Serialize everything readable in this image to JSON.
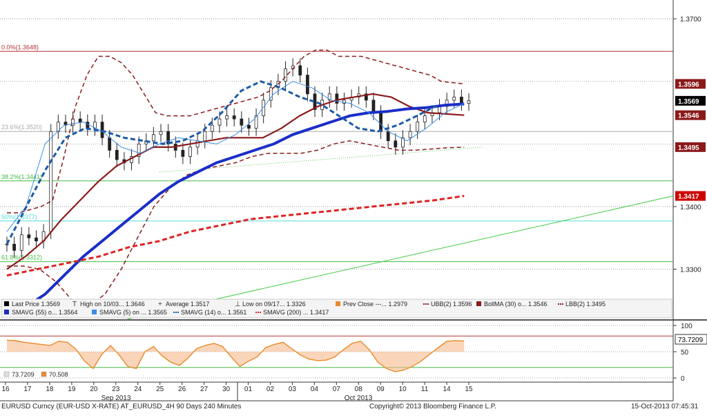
{
  "chart_data": {
    "type": "line",
    "title": "EURUSD Curncy (EUR-USD X-RATE) AT_EURUSD_4H 90 Days 240 Minutes",
    "copyright": "Copyright© 2013 Bloomberg Finance L.P.",
    "timestamp": "15-Oct-2013 07:45:31",
    "x_ticks": [
      "16",
      "17",
      "18",
      "19",
      "20",
      "23",
      "24",
      "25",
      "26",
      "27",
      "30",
      "01",
      "02",
      "03",
      "04",
      "07",
      "08",
      "09",
      "10",
      "11",
      "14",
      "15"
    ],
    "month_labels": [
      "Sep 2013",
      "Oct 2013"
    ],
    "price_axis": {
      "ticks": [
        "1.3700",
        "1.3400",
        "1.3300"
      ],
      "ylim": [
        1.322,
        1.373
      ]
    },
    "fibonacci_levels": [
      {
        "label": "0.0%(1.3648)",
        "value": 1.3648,
        "color": "#b03030"
      },
      {
        "label": "23.6%(1.3520)",
        "value": 1.352,
        "color": "#aaaaaa"
      },
      {
        "label": "38.2%(1.3441)",
        "value": 1.3441,
        "color": "#44bb44"
      },
      {
        "label": "50%(1.3377)",
        "value": 1.3377,
        "color": "#55dddd"
      },
      {
        "label": "61.8%(1.3312)",
        "value": 1.3312,
        "color": "#44bb44"
      }
    ],
    "price_tags": [
      {
        "label": "1.3596",
        "value": 1.3596,
        "color": "#8b1a1a"
      },
      {
        "label": "1.3569",
        "value": 1.3569,
        "color": "#000000"
      },
      {
        "label": "1.3546",
        "value": 1.3546,
        "color": "#8b1a1a"
      },
      {
        "label": "1.3495",
        "value": 1.3495,
        "color": "#8b1a1a"
      },
      {
        "label": "1.3417",
        "value": 1.3417,
        "color": "#cc0000"
      }
    ],
    "legend": [
      [
        {
          "text": "Last Price",
          "value": "1.3569",
          "color": "#000000",
          "kind": "box"
        },
        {
          "text": "High on 10/03...",
          "value": "1.3646",
          "color": "#333333",
          "kind": "high"
        },
        {
          "text": "Average",
          "value": "1.3517",
          "color": "#333333",
          "kind": "plus"
        },
        {
          "text": "Low on 09/17...",
          "value": "1.3326",
          "color": "#333333",
          "kind": "low"
        },
        {
          "text": "Prev Close ---...",
          "value": "1.2979",
          "color": "#e88a2a",
          "kind": "box"
        },
        {
          "text": "UBB(2)",
          "value": "1.3596",
          "color": "#8b1a1a",
          "kind": "dash"
        },
        {
          "text": "BollMA (30) o...",
          "value": "1.3546",
          "color": "#8b1a1a",
          "kind": "box"
        },
        {
          "text": "LBB(2)",
          "value": "1.3495",
          "color": "#8b1a1a",
          "kind": "dash"
        }
      ],
      [
        {
          "text": "SMAVG (55) o...",
          "value": "1.3564",
          "color": "#1a2ec8",
          "kind": "box"
        },
        {
          "text": "SMAVG (5) on ...",
          "value": "1.3565",
          "color": "#3a8ee8",
          "kind": "box"
        },
        {
          "text": "SMAVG (14) o...",
          "value": "1.3561",
          "color": "#1a5aa8",
          "kind": "dash"
        },
        {
          "text": "SMAVG (200) ...",
          "value": "1.3417",
          "color": "#dd2222",
          "kind": "dash"
        }
      ]
    ],
    "series": [
      {
        "name": "Last Price",
        "style": "candlestick",
        "color": "#222222",
        "close": [
          1.334,
          1.333,
          1.3355,
          1.335,
          1.3345,
          1.336,
          1.352,
          1.3535,
          1.353,
          1.354,
          1.3535,
          1.3525,
          1.3535,
          1.351,
          1.349,
          1.3475,
          1.347,
          1.348,
          1.35,
          1.3505,
          1.3515,
          1.352,
          1.35,
          1.349,
          1.348,
          1.3495,
          1.3505,
          1.352,
          1.353,
          1.354,
          1.3545,
          1.354,
          1.353,
          1.3525,
          1.3545,
          1.357,
          1.359,
          1.36,
          1.362,
          1.3625,
          1.361,
          1.358,
          1.3555,
          1.357,
          1.358,
          1.3565,
          1.357,
          1.3575,
          1.358,
          1.357,
          1.355,
          1.352,
          1.3505,
          1.3495,
          1.351,
          1.352,
          1.3535,
          1.3545,
          1.355,
          1.356,
          1.357,
          1.3575,
          1.3565,
          1.3569
        ]
      },
      {
        "name": "UBB(2)",
        "style": "dashed",
        "color": "#8b1a1a",
        "values": [
          1.339,
          1.339,
          1.3395,
          1.34,
          1.341,
          1.348,
          1.356,
          1.361,
          1.364,
          1.364,
          1.363,
          1.361,
          1.358,
          1.355,
          1.3545,
          1.3545,
          1.3545,
          1.355,
          1.3555,
          1.356,
          1.3565,
          1.357,
          1.3575,
          1.3585,
          1.36,
          1.362,
          1.364,
          1.365,
          1.365,
          1.364,
          1.364,
          1.364,
          1.3635,
          1.363,
          1.3625,
          1.362,
          1.3615,
          1.361,
          1.36,
          1.3598,
          1.3596
        ]
      },
      {
        "name": "LBB(2)",
        "style": "dashed",
        "color": "#8b1a1a",
        "values": [
          1.3305,
          1.3305,
          1.33,
          1.328,
          1.325,
          1.324,
          1.326,
          1.33,
          1.335,
          1.34,
          1.343,
          1.345,
          1.346,
          1.3465,
          1.347,
          1.348,
          1.3485,
          1.3485,
          1.3485,
          1.349,
          1.35,
          1.3505,
          1.35,
          1.3495,
          1.349,
          1.349,
          1.3492,
          1.3494,
          1.3495
        ]
      },
      {
        "name": "BollMA (30)",
        "style": "solid",
        "color": "#8b1a1a",
        "values": [
          1.33,
          1.332,
          1.3345,
          1.338,
          1.341,
          1.344,
          1.3465,
          1.348,
          1.3495,
          1.3495,
          1.35,
          1.3505,
          1.351,
          1.351,
          1.351,
          1.3525,
          1.3545,
          1.356,
          1.357,
          1.3575,
          1.358,
          1.3575,
          1.356,
          1.355,
          1.3548,
          1.3546
        ]
      },
      {
        "name": "SMAVG (55)",
        "style": "thick",
        "color": "#1a2ec8",
        "values": [
          1.3225,
          1.324,
          1.326,
          1.329,
          1.332,
          1.3345,
          1.337,
          1.3395,
          1.342,
          1.344,
          1.3455,
          1.347,
          1.348,
          1.349,
          1.35,
          1.3515,
          1.3525,
          1.3535,
          1.3545,
          1.355,
          1.3552,
          1.3556,
          1.3558,
          1.3562,
          1.3564
        ]
      },
      {
        "name": "SMAVG (5)",
        "style": "solid-thin",
        "color": "#3a8ee8",
        "values": [
          1.336,
          1.34,
          1.35,
          1.353,
          1.3535,
          1.352,
          1.3495,
          1.3485,
          1.35,
          1.351,
          1.3505,
          1.35,
          1.3515,
          1.354,
          1.358,
          1.36,
          1.359,
          1.357,
          1.3565,
          1.355,
          1.352,
          1.3505,
          1.3525,
          1.355,
          1.3565
        ]
      },
      {
        "name": "SMAVG (14)",
        "style": "dashed-thick",
        "color": "#1a5aa8",
        "values": [
          1.334,
          1.34,
          1.346,
          1.351,
          1.3525,
          1.352,
          1.351,
          1.3505,
          1.35,
          1.3505,
          1.352,
          1.355,
          1.3585,
          1.36,
          1.359,
          1.3575,
          1.3565,
          1.3545,
          1.3525,
          1.352,
          1.353,
          1.3545,
          1.3561
        ]
      },
      {
        "name": "SMAVG (200)",
        "style": "dashed-thick",
        "color": "#dd2222",
        "values": [
          1.329,
          1.33,
          1.331,
          1.332,
          1.3335,
          1.3345,
          1.336,
          1.337,
          1.338,
          1.3385,
          1.339,
          1.3395,
          1.34,
          1.3405,
          1.341,
          1.3417
        ]
      }
    ],
    "oscillator": {
      "axis_ticks": [
        "100",
        "50",
        "0"
      ],
      "ylim": [
        0,
        100
      ],
      "levels": [
        80,
        20
      ],
      "last_label": "73.7209",
      "legend": [
        {
          "text": "73.7209",
          "color": "#dddddd"
        },
        {
          "text": "70.508",
          "color": "#e88a2a"
        }
      ],
      "line_values": [
        72,
        71,
        68,
        66,
        64,
        62,
        70,
        68,
        55,
        32,
        18,
        45,
        62,
        44,
        22,
        18,
        50,
        60,
        42,
        30,
        24,
        38,
        56,
        62,
        66,
        60,
        40,
        22,
        32,
        40,
        58,
        64,
        68,
        56,
        44,
        36,
        33,
        34,
        40,
        54,
        66,
        70,
        54,
        30,
        18,
        12,
        15,
        22,
        32,
        45,
        58,
        70,
        71,
        70.5
      ]
    }
  }
}
